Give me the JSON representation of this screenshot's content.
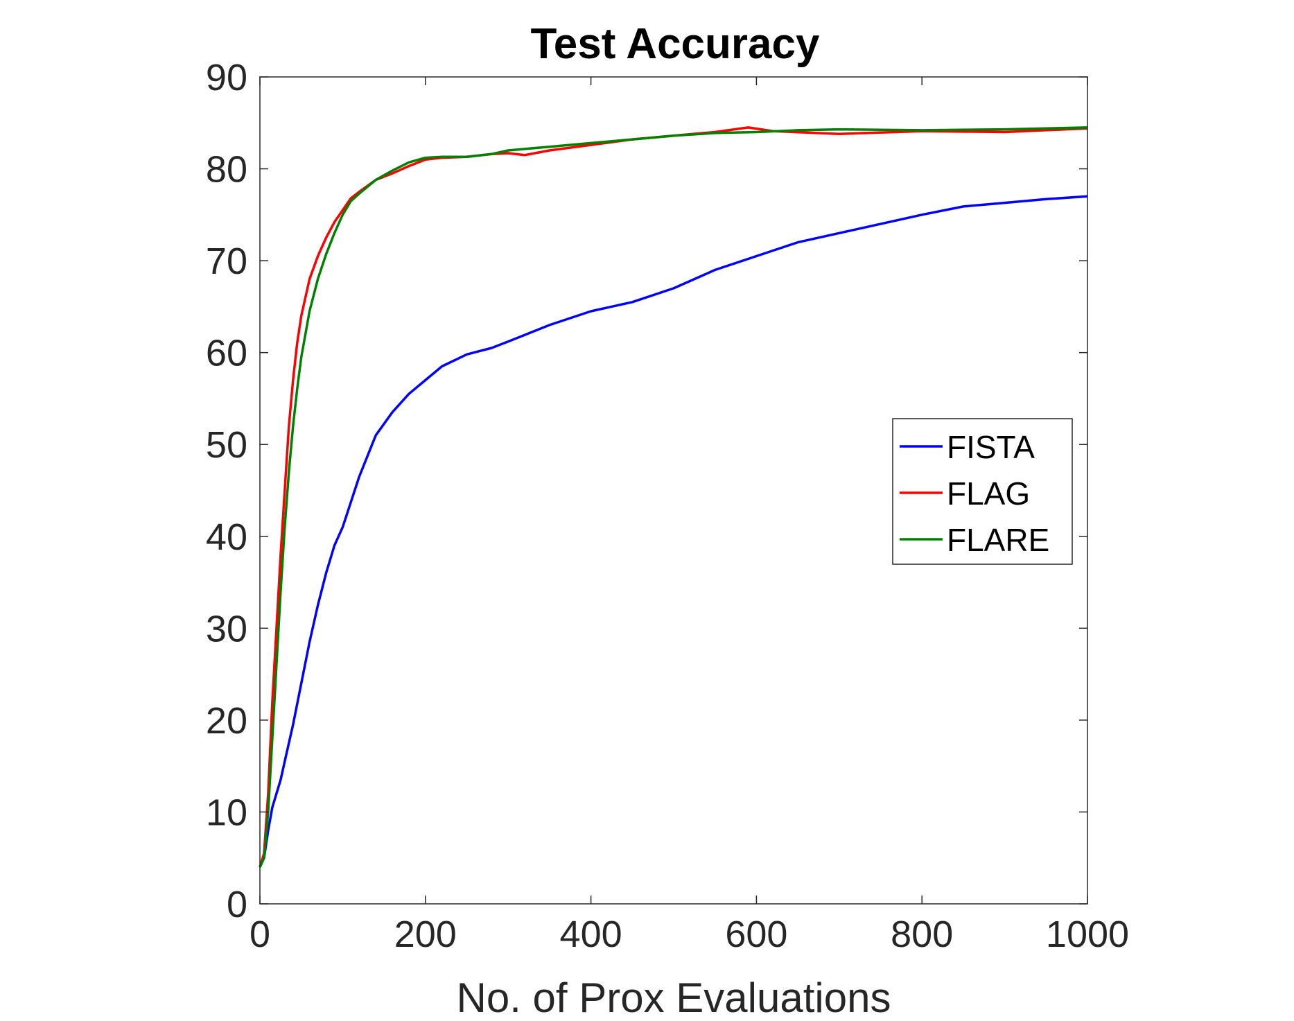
{
  "chart_data": {
    "type": "line",
    "title": "Test Accuracy",
    "xlabel": "No. of Prox Evaluations",
    "ylabel": "",
    "xlim": [
      0,
      1000
    ],
    "ylim": [
      0,
      90
    ],
    "xticks": [
      0,
      200,
      400,
      600,
      800,
      1000
    ],
    "yticks": [
      0,
      10,
      20,
      30,
      40,
      50,
      60,
      70,
      80,
      90
    ],
    "grid": false,
    "legend_position": "right",
    "series": [
      {
        "name": "FISTA",
        "color": "#0000ff",
        "x": [
          0,
          5,
          10,
          15,
          20,
          25,
          30,
          40,
          50,
          60,
          70,
          80,
          90,
          100,
          120,
          140,
          160,
          180,
          200,
          220,
          250,
          280,
          300,
          350,
          400,
          450,
          500,
          550,
          600,
          650,
          700,
          750,
          800,
          850,
          900,
          950,
          1000
        ],
        "y": [
          4,
          5,
          8,
          10.5,
          12,
          13.5,
          15.5,
          19.5,
          24,
          28.5,
          32.5,
          36,
          39,
          41,
          46.5,
          51,
          53.5,
          55.5,
          57,
          58.5,
          59.8,
          60.5,
          61.2,
          63,
          64.5,
          65.5,
          67,
          69,
          70.5,
          72,
          73,
          74,
          75,
          75.9,
          76.3,
          76.7,
          77
        ]
      },
      {
        "name": "FLAG",
        "color": "#ff0000",
        "x": [
          0,
          5,
          10,
          15,
          20,
          25,
          30,
          35,
          40,
          45,
          50,
          60,
          70,
          80,
          90,
          100,
          110,
          120,
          140,
          160,
          180,
          200,
          220,
          250,
          280,
          300,
          320,
          350,
          400,
          450,
          500,
          550,
          590,
          620,
          700,
          800,
          900,
          1000
        ],
        "y": [
          4,
          5.5,
          12,
          22,
          30,
          38,
          45,
          52,
          57,
          61,
          64,
          68,
          70.5,
          72.5,
          74.2,
          75.5,
          76.8,
          77.5,
          78.8,
          79.5,
          80.3,
          81,
          81.2,
          81.3,
          81.6,
          81.7,
          81.5,
          82,
          82.6,
          83.2,
          83.6,
          84,
          84.5,
          84.1,
          83.8,
          84.1,
          84,
          84.4
        ]
      },
      {
        "name": "FLARE",
        "color": "#008000",
        "x": [
          0,
          5,
          10,
          15,
          20,
          25,
          30,
          35,
          40,
          45,
          50,
          60,
          70,
          80,
          90,
          100,
          110,
          120,
          140,
          160,
          180,
          200,
          220,
          250,
          280,
          300,
          350,
          400,
          450,
          500,
          550,
          600,
          650,
          700,
          800,
          900,
          1000
        ],
        "y": [
          4,
          5,
          10,
          18,
          26,
          34,
          41,
          47,
          52,
          56,
          59.5,
          64.5,
          68,
          70.7,
          73,
          75,
          76.5,
          77.3,
          78.8,
          79.8,
          80.7,
          81.2,
          81.3,
          81.3,
          81.6,
          82,
          82.4,
          82.8,
          83.2,
          83.6,
          83.9,
          84,
          84.2,
          84.3,
          84.2,
          84.3,
          84.5
        ]
      }
    ]
  }
}
